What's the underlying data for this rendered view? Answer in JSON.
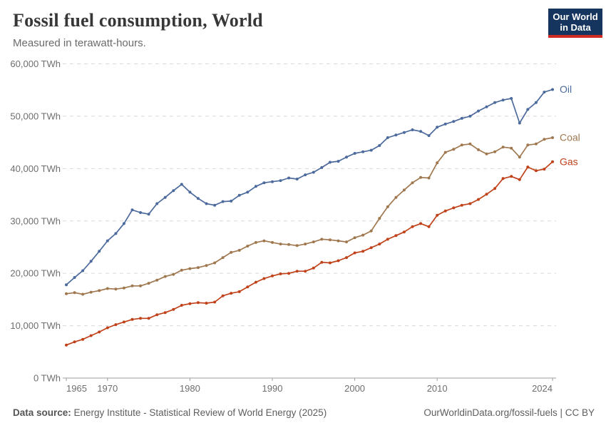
{
  "header": {
    "title": "Fossil fuel consumption, World",
    "subtitle": "Measured in terawatt-hours.",
    "logo_line1": "Our World",
    "logo_line2": "in Data"
  },
  "footer": {
    "source_label": "Data source:",
    "source_text": " Energy Institute - Statistical Review of World Energy (2025)",
    "link": "OurWorldinData.org/fossil-fuels",
    "separator": " | ",
    "license": "CC BY"
  },
  "chart_data": {
    "type": "line",
    "title": "Fossil fuel consumption, World",
    "ylabel": "",
    "xlabel": "",
    "unit": "TWh",
    "ylim": [
      0,
      60000
    ],
    "xlim": [
      1965,
      2024
    ],
    "grid": "horizontal-dashed",
    "legend_position": "end-of-line-labels",
    "x": [
      1965,
      1966,
      1967,
      1968,
      1969,
      1970,
      1971,
      1972,
      1973,
      1974,
      1975,
      1976,
      1977,
      1978,
      1979,
      1980,
      1981,
      1982,
      1983,
      1984,
      1985,
      1986,
      1987,
      1988,
      1989,
      1990,
      1991,
      1992,
      1993,
      1994,
      1995,
      1996,
      1997,
      1998,
      1999,
      2000,
      2001,
      2002,
      2003,
      2004,
      2005,
      2006,
      2007,
      2008,
      2009,
      2010,
      2011,
      2012,
      2013,
      2014,
      2015,
      2016,
      2017,
      2018,
      2019,
      2020,
      2021,
      2022,
      2023,
      2024
    ],
    "series": [
      {
        "name": "Oil",
        "color": "#4C6A9C",
        "values": [
          17800,
          19200,
          20500,
          22300,
          24200,
          26200,
          27600,
          29500,
          32100,
          31600,
          31300,
          33300,
          34500,
          35800,
          37000,
          35500,
          34300,
          33300,
          33000,
          33700,
          33800,
          34900,
          35500,
          36600,
          37300,
          37500,
          37700,
          38200,
          38000,
          38800,
          39300,
          40200,
          41200,
          41400,
          42200,
          42900,
          43200,
          43500,
          44400,
          45900,
          46400,
          46900,
          47400,
          47100,
          46300,
          47900,
          48500,
          49000,
          49600,
          50000,
          51000,
          51800,
          52600,
          53100,
          53400,
          48700,
          51300,
          52600,
          54600,
          55100
        ]
      },
      {
        "name": "Coal",
        "color": "#A0784F",
        "values": [
          16100,
          16300,
          16000,
          16400,
          16700,
          17100,
          17000,
          17200,
          17600,
          17600,
          18100,
          18700,
          19400,
          19800,
          20600,
          20900,
          21100,
          21500,
          22000,
          23000,
          24000,
          24400,
          25200,
          25900,
          26200,
          25900,
          25600,
          25500,
          25300,
          25600,
          26000,
          26500,
          26400,
          26200,
          26000,
          26800,
          27300,
          28100,
          30500,
          32700,
          34500,
          35900,
          37300,
          38300,
          38200,
          41100,
          43100,
          43700,
          44500,
          44700,
          43600,
          42800,
          43200,
          44100,
          43900,
          42200,
          44500,
          44700,
          45600,
          45900
        ]
      },
      {
        "name": "Gas",
        "color": "#C0421A",
        "values": [
          6300,
          6900,
          7400,
          8100,
          8800,
          9600,
          10200,
          10700,
          11200,
          11400,
          11400,
          12100,
          12500,
          13100,
          13900,
          14200,
          14400,
          14300,
          14500,
          15700,
          16200,
          16500,
          17400,
          18300,
          19000,
          19500,
          19900,
          20000,
          20400,
          20400,
          21000,
          22100,
          22000,
          22400,
          23000,
          23900,
          24200,
          24900,
          25600,
          26500,
          27200,
          27900,
          28900,
          29500,
          28900,
          31100,
          31900,
          32500,
          33000,
          33300,
          34100,
          35100,
          36200,
          38100,
          38500,
          37900,
          40300,
          39600,
          39900,
          41300
        ]
      }
    ],
    "y_ticks": [
      {
        "value": 0,
        "label": "0 TWh"
      },
      {
        "value": 10000,
        "label": "10,000 TWh"
      },
      {
        "value": 20000,
        "label": "20,000 TWh"
      },
      {
        "value": 30000,
        "label": "30,000 TWh"
      },
      {
        "value": 40000,
        "label": "40,000 TWh"
      },
      {
        "value": 50000,
        "label": "50,000 TWh"
      },
      {
        "value": 60000,
        "label": "60,000 TWh"
      }
    ],
    "x_ticks": [
      {
        "value": 1965,
        "label": "1965",
        "anchor": "start"
      },
      {
        "value": 1970,
        "label": "1970",
        "anchor": "middle"
      },
      {
        "value": 1980,
        "label": "1980",
        "anchor": "middle"
      },
      {
        "value": 1990,
        "label": "1990",
        "anchor": "middle"
      },
      {
        "value": 2000,
        "label": "2000",
        "anchor": "middle"
      },
      {
        "value": 2010,
        "label": "2010",
        "anchor": "middle"
      },
      {
        "value": 2024,
        "label": "2024",
        "anchor": "end"
      }
    ]
  }
}
